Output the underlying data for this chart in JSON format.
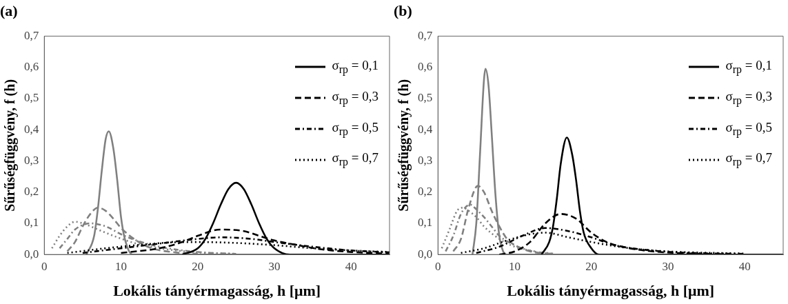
{
  "chart_data": [
    {
      "type": "line",
      "title": "(a)",
      "xlabel": "Lokális tányérmagasság, h [μm]",
      "ylabel": "Sűrűségfüggvény, f (h)",
      "xlim": [
        0,
        45
      ],
      "xticks": [
        0,
        10,
        20,
        30,
        40
      ],
      "ylim": [
        0,
        0.7
      ],
      "yticks": [
        {
          "value": 0,
          "label": "0,0"
        },
        {
          "value": 0.1,
          "label": "0,1"
        },
        {
          "value": 0.2,
          "label": "0,2"
        },
        {
          "value": 0.3,
          "label": "0,3"
        },
        {
          "value": 0.4,
          "label": "0,4"
        },
        {
          "value": 0.5,
          "label": "0,5"
        },
        {
          "value": 0.6,
          "label": "0,6"
        },
        {
          "value": 0.7,
          "label": "0,7"
        }
      ],
      "legend": "top right",
      "series": [
        {
          "name": "σ$_{rp}$ = 0,1",
          "color": "#000000",
          "line_style": "solid",
          "x": [
            18,
            20,
            21,
            22,
            23,
            24,
            25,
            26,
            27,
            28,
            29,
            30,
            32,
            45
          ],
          "values": [
            0,
            0.02,
            0.05,
            0.1,
            0.16,
            0.21,
            0.23,
            0.21,
            0.16,
            0.1,
            0.05,
            0.02,
            0,
            0
          ]
        },
        {
          "name": "σ$_{rp}$ = 0,3",
          "color": "#000000",
          "line_style": "dashed",
          "x": [
            10,
            15,
            18,
            20,
            23,
            26,
            28,
            30,
            33,
            36,
            40,
            45
          ],
          "values": [
            0.005,
            0.02,
            0.04,
            0.06,
            0.08,
            0.075,
            0.06,
            0.045,
            0.03,
            0.017,
            0.008,
            0.003
          ]
        },
        {
          "name": "σ$_{rp}$ = 0,5",
          "color": "#000000",
          "line_style": "dashdot",
          "x": [
            5,
            10,
            15,
            20,
            23,
            27,
            30,
            35,
            40,
            45
          ],
          "values": [
            0.005,
            0.02,
            0.035,
            0.05,
            0.055,
            0.05,
            0.04,
            0.025,
            0.013,
            0.007
          ]
        },
        {
          "name": "σ$_{rp}$ = 0,7",
          "color": "#000000",
          "line_style": "dotted",
          "x": [
            3,
            8,
            12,
            16,
            20,
            25,
            30,
            35,
            40,
            45
          ],
          "values": [
            0.005,
            0.02,
            0.03,
            0.038,
            0.04,
            0.037,
            0.03,
            0.02,
            0.013,
            0.008
          ]
        },
        {
          "color": "#808080",
          "line_style": "solid",
          "x": [
            5.5,
            6.5,
            7,
            7.5,
            8,
            8.4,
            9,
            9.5,
            10,
            10.5,
            11.5,
            45
          ],
          "values": [
            0,
            0.06,
            0.15,
            0.27,
            0.37,
            0.395,
            0.34,
            0.24,
            0.12,
            0.05,
            0,
            0
          ]
        },
        {
          "color": "#808080",
          "line_style": "dashed",
          "x": [
            3,
            4,
            5,
            6,
            7,
            8,
            9,
            10,
            12,
            14,
            17,
            20
          ],
          "values": [
            0.01,
            0.04,
            0.09,
            0.13,
            0.15,
            0.14,
            0.115,
            0.085,
            0.045,
            0.02,
            0.007,
            0.002
          ]
        },
        {
          "color": "#808080",
          "line_style": "dashdot",
          "x": [
            2,
            3,
            4,
            6,
            8,
            10,
            12,
            15,
            20,
            25
          ],
          "values": [
            0.02,
            0.05,
            0.08,
            0.1,
            0.09,
            0.065,
            0.045,
            0.025,
            0.008,
            0.002
          ]
        },
        {
          "color": "#808080",
          "line_style": "dotted",
          "x": [
            1,
            2,
            3,
            4,
            5,
            7,
            9,
            12,
            15,
            20,
            25
          ],
          "values": [
            0.02,
            0.06,
            0.09,
            0.105,
            0.1,
            0.08,
            0.06,
            0.035,
            0.02,
            0.007,
            0.002
          ]
        }
      ]
    },
    {
      "type": "line",
      "title": "(b)",
      "xlabel": "Lokális tányérmagasság, h [μm]",
      "ylabel": "Sűrűségfüggvény, f (h)",
      "xlim": [
        0,
        45
      ],
      "xticks": [
        0,
        10,
        20,
        30,
        40
      ],
      "ylim": [
        0,
        0.7
      ],
      "yticks": [
        {
          "value": 0,
          "label": "0,0"
        },
        {
          "value": 0.1,
          "label": "0,1"
        },
        {
          "value": 0.2,
          "label": "0,2"
        },
        {
          "value": 0.3,
          "label": "0,3"
        },
        {
          "value": 0.4,
          "label": "0,4"
        },
        {
          "value": 0.5,
          "label": "0,5"
        },
        {
          "value": 0.6,
          "label": "0,6"
        },
        {
          "value": 0.7,
          "label": "0,7"
        }
      ],
      "legend": "top right",
      "series": [
        {
          "name": "σ$_{rp}$ = 0,1",
          "color": "#000000",
          "line_style": "solid",
          "x": [
            13.5,
            14.5,
            15,
            15.5,
            16,
            16.8,
            17.5,
            18,
            18.5,
            19,
            20,
            21,
            45
          ],
          "values": [
            0,
            0.04,
            0.09,
            0.18,
            0.29,
            0.375,
            0.32,
            0.24,
            0.14,
            0.07,
            0.02,
            0,
            0
          ]
        },
        {
          "name": "σ$_{rp}$ = 0,3",
          "color": "#000000",
          "line_style": "dashed",
          "x": [
            8,
            10,
            12,
            14,
            16,
            18,
            20,
            22,
            25,
            28,
            32,
            38
          ],
          "values": [
            0,
            0.01,
            0.04,
            0.1,
            0.13,
            0.115,
            0.07,
            0.04,
            0.02,
            0.01,
            0.004,
            0.001
          ]
        },
        {
          "name": "σ$_{rp}$ = 0,5",
          "color": "#000000",
          "line_style": "dashdot",
          "x": [
            5,
            8,
            11,
            14,
            17,
            20,
            23,
            27,
            32,
            40
          ],
          "values": [
            0.005,
            0.025,
            0.06,
            0.085,
            0.075,
            0.055,
            0.03,
            0.015,
            0.006,
            0.002
          ]
        },
        {
          "name": "σ$_{rp}$ = 0,7",
          "color": "#000000",
          "line_style": "dotted",
          "x": [
            3,
            6,
            9,
            12,
            14,
            17,
            20,
            25,
            30,
            40
          ],
          "values": [
            0.005,
            0.02,
            0.045,
            0.065,
            0.07,
            0.055,
            0.04,
            0.02,
            0.01,
            0.003
          ]
        },
        {
          "color": "#808080",
          "line_style": "solid",
          "x": [
            4.5,
            5,
            5.5,
            6,
            6.2,
            6.6,
            7,
            7.5,
            8,
            8.5,
            9,
            45
          ],
          "values": [
            0,
            0.1,
            0.33,
            0.56,
            0.595,
            0.54,
            0.39,
            0.19,
            0.06,
            0.01,
            0,
            0
          ]
        },
        {
          "color": "#808080",
          "line_style": "dashed",
          "x": [
            2,
            3,
            4,
            5.2,
            6,
            7,
            8,
            9,
            10,
            12,
            15
          ],
          "values": [
            0.01,
            0.05,
            0.15,
            0.22,
            0.2,
            0.14,
            0.09,
            0.05,
            0.03,
            0.01,
            0.002
          ]
        },
        {
          "color": "#808080",
          "line_style": "dashdot",
          "x": [
            1,
            2,
            3,
            4.2,
            5,
            6,
            7,
            8,
            10,
            12,
            15
          ],
          "values": [
            0.01,
            0.06,
            0.13,
            0.16,
            0.145,
            0.12,
            0.09,
            0.06,
            0.03,
            0.012,
            0.003
          ]
        },
        {
          "color": "#808080",
          "line_style": "dotted",
          "x": [
            0.5,
            1.5,
            2.5,
            3.3,
            4,
            5,
            6,
            8,
            10,
            13
          ],
          "values": [
            0.02,
            0.08,
            0.14,
            0.15,
            0.14,
            0.12,
            0.09,
            0.05,
            0.025,
            0.008
          ]
        }
      ]
    }
  ]
}
